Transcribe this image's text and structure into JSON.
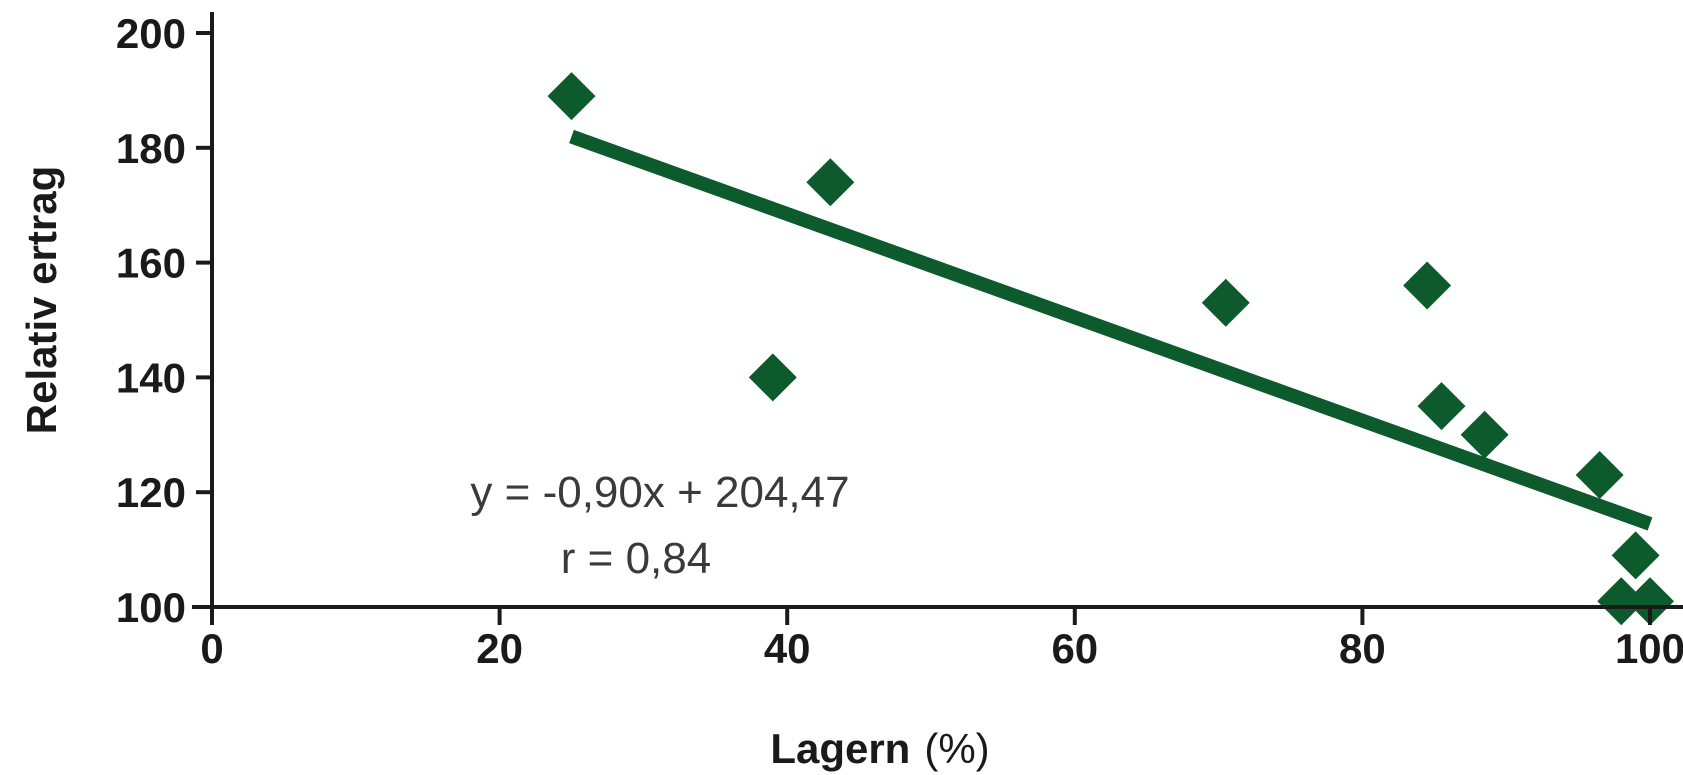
{
  "chart_data": {
    "type": "scatter",
    "xlabel": "Lagern",
    "xlabel_unit": "(%)",
    "ylabel": "Relativ ertrag",
    "xlim": [
      0,
      100
    ],
    "ylim": [
      100,
      200
    ],
    "xticks": [
      0,
      20,
      40,
      60,
      80,
      100
    ],
    "yticks": [
      100,
      120,
      140,
      160,
      180,
      200
    ],
    "grid": false,
    "points": [
      {
        "x": 25,
        "y": 189
      },
      {
        "x": 39,
        "y": 140
      },
      {
        "x": 43,
        "y": 174
      },
      {
        "x": 70.5,
        "y": 153
      },
      {
        "x": 84.5,
        "y": 156
      },
      {
        "x": 85.5,
        "y": 135
      },
      {
        "x": 88.5,
        "y": 130
      },
      {
        "x": 96.5,
        "y": 123
      },
      {
        "x": 99,
        "y": 109
      },
      {
        "x": 98,
        "y": 101
      },
      {
        "x": 100,
        "y": 101
      }
    ],
    "trendline": {
      "slope": -0.9,
      "intercept": 204.47,
      "x_range": [
        25,
        100
      ]
    },
    "annotations": [
      "y = -0,90x + 204,47",
      "r = 0,84"
    ],
    "colors": {
      "marker": "#0d5a2c",
      "trendline": "#0d5a2c",
      "axis": "#1a1a1a"
    }
  }
}
